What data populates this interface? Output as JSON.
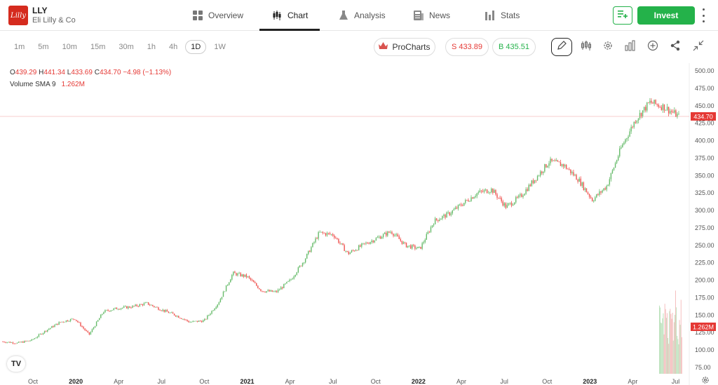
{
  "header": {
    "logo_text": "Lilly",
    "ticker": "LLY",
    "company": "Eli Lilly & Co",
    "tabs": [
      {
        "label": "Overview",
        "icon": "grid-icon"
      },
      {
        "label": "Chart",
        "icon": "candlestick-icon",
        "active": true
      },
      {
        "label": "Analysis",
        "icon": "flask-icon"
      },
      {
        "label": "News",
        "icon": "news-icon"
      },
      {
        "label": "Stats",
        "icon": "bar-chart-icon"
      }
    ],
    "invest_label": "Invest",
    "accent": "#24b24a"
  },
  "toolbar": {
    "timeframes": [
      "1m",
      "5m",
      "10m",
      "15m",
      "30m",
      "1h",
      "4h",
      "1D",
      "1W"
    ],
    "active_timeframe": "1D",
    "procharts_label": "ProCharts",
    "sell_label": "S 433.89",
    "buy_label": "B 435.51"
  },
  "legend": {
    "o_label": "O",
    "o_value": "439.29",
    "h_label": "H",
    "h_value": "441.34",
    "l_label": "L",
    "l_value": "433.69",
    "c_label": "C",
    "c_value": "434.70",
    "change": "−4.98 (−1.13%)",
    "volume_label": "Volume SMA 9",
    "volume_value": "1.262M"
  },
  "chart_data": {
    "type": "candlestick",
    "x_tick_labels": [
      "Oct",
      "2020",
      "Apr",
      "Jul",
      "Oct",
      "2021",
      "Apr",
      "Jul",
      "Oct",
      "2022",
      "Apr",
      "Jul",
      "Oct",
      "2023",
      "Apr",
      "Jul"
    ],
    "y_tick_labels": [
      "500.00",
      "475.00",
      "450.00",
      "425.00",
      "400.00",
      "375.00",
      "350.00",
      "325.00",
      "300.00",
      "275.00",
      "250.00",
      "225.00",
      "200.00",
      "175.00",
      "150.00",
      "125.00",
      "100.00",
      "75.00"
    ],
    "ylim": [
      70,
      505
    ],
    "last_price": 434.7,
    "last_price_label": "434.70",
    "volume_label": "1.262M",
    "up_color": "#66bb6a",
    "down_color": "#ef5350",
    "price_path": [
      [
        "2019-09",
        112
      ],
      [
        "2019-10",
        110
      ],
      [
        "2019-11",
        114
      ],
      [
        "2019-12",
        128
      ],
      [
        "2020-01",
        140
      ],
      [
        "2020-02",
        145
      ],
      [
        "2020-03",
        122
      ],
      [
        "2020-04",
        155
      ],
      [
        "2020-05",
        160
      ],
      [
        "2020-06",
        162
      ],
      [
        "2020-07",
        167
      ],
      [
        "2020-08",
        158
      ],
      [
        "2020-09",
        150
      ],
      [
        "2020-10",
        140
      ],
      [
        "2020-11",
        142
      ],
      [
        "2020-12",
        168
      ],
      [
        "2021-01",
        210
      ],
      [
        "2021-02",
        205
      ],
      [
        "2021-03",
        185
      ],
      [
        "2021-04",
        183
      ],
      [
        "2021-05",
        200
      ],
      [
        "2021-06",
        230
      ],
      [
        "2021-07",
        268
      ],
      [
        "2021-08",
        265
      ],
      [
        "2021-09",
        238
      ],
      [
        "2021-10",
        250
      ],
      [
        "2021-11",
        260
      ],
      [
        "2021-12",
        270
      ],
      [
        "2022-01",
        250
      ],
      [
        "2022-02",
        245
      ],
      [
        "2022-03",
        285
      ],
      [
        "2022-04",
        295
      ],
      [
        "2022-05",
        310
      ],
      [
        "2022-06",
        325
      ],
      [
        "2022-07",
        330
      ],
      [
        "2022-08",
        305
      ],
      [
        "2022-09",
        320
      ],
      [
        "2022-10",
        345
      ],
      [
        "2022-11",
        370
      ],
      [
        "2022-12",
        365
      ],
      [
        "2023-01",
        345
      ],
      [
        "2023-02",
        315
      ],
      [
        "2023-03",
        335
      ],
      [
        "2023-04",
        390
      ],
      [
        "2023-05",
        430
      ],
      [
        "2023-06",
        455
      ],
      [
        "2023-07",
        448
      ],
      [
        "2023-07b",
        434.7
      ]
    ]
  },
  "icons": {
    "watchlist": "add-watchlist-icon",
    "more": "more-vertical-icon",
    "crown": "crown-icon",
    "draw": "pencil-icon",
    "indicators": "candles-icon",
    "settings": "gear-icon",
    "chart_type": "bars-icon",
    "add": "plus-circle-icon",
    "share": "share-icon",
    "collapse": "collapse-icon"
  }
}
